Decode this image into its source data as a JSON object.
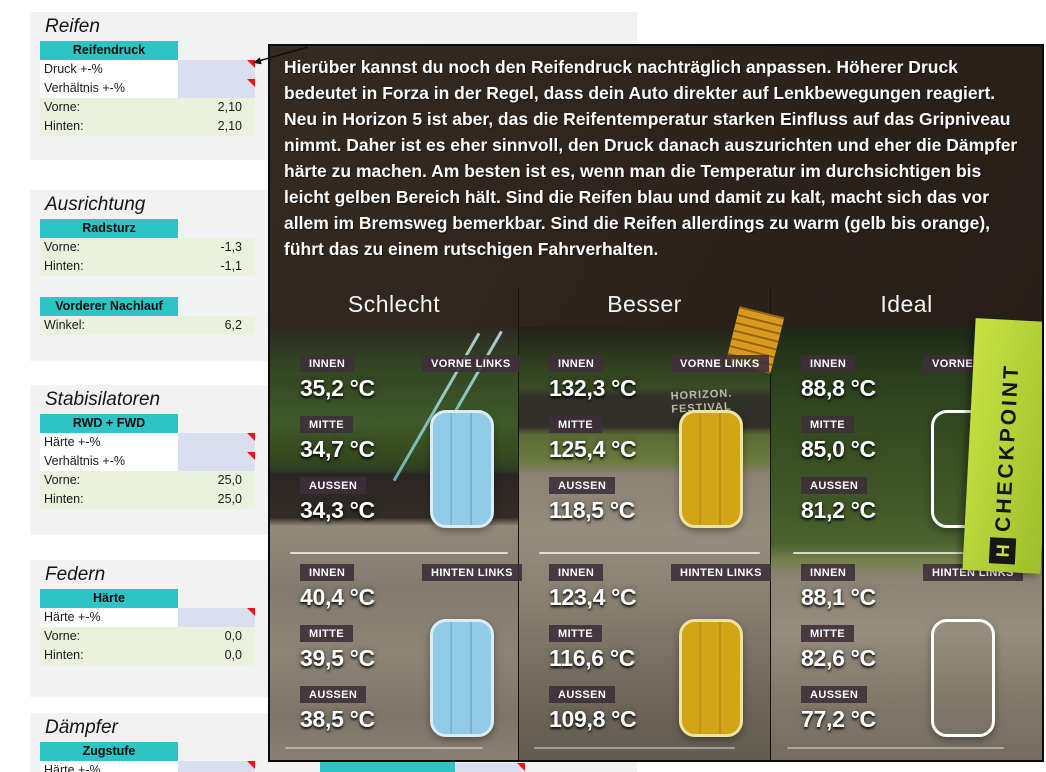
{
  "spreadsheet": {
    "panels": [
      {
        "title": "Reifen",
        "groups": [
          {
            "header": "Reifendruck",
            "rows": [
              {
                "type": "input",
                "label": "Druck +-%"
              },
              {
                "type": "input",
                "label": "Verhältnis +-%"
              },
              {
                "type": "value",
                "label": "Vorne:",
                "value": "2,10"
              },
              {
                "type": "value",
                "label": "Hinten:",
                "value": "2,10"
              }
            ]
          }
        ]
      },
      {
        "title": "Ausrichtung",
        "groups": [
          {
            "header": "Radsturz",
            "rows": [
              {
                "type": "value",
                "label": "Vorne:",
                "value": "-1,3"
              },
              {
                "type": "value",
                "label": "Hinten:",
                "value": "-1,1"
              }
            ]
          },
          {
            "header": "Vorderer Nachlauf",
            "rows": [
              {
                "type": "value",
                "label": "Winkel:",
                "value": "6,2"
              }
            ]
          }
        ]
      },
      {
        "title": "Stabisilatoren",
        "groups": [
          {
            "header": "RWD + FWD",
            "rows": [
              {
                "type": "input",
                "label": "Härte +-%"
              },
              {
                "type": "input",
                "label": "Verhältnis +-%"
              },
              {
                "type": "value",
                "label": "Vorne:",
                "value": "25,0"
              },
              {
                "type": "value",
                "label": "Hinten:",
                "value": "25,0"
              }
            ]
          }
        ]
      },
      {
        "title": "Federn",
        "groups": [
          {
            "header": "Härte",
            "rows": [
              {
                "type": "input",
                "label": "Härte +-%"
              },
              {
                "type": "value",
                "label": "Vorne:",
                "value": "0,0"
              },
              {
                "type": "value",
                "label": "Hinten:",
                "value": "0,0"
              }
            ]
          }
        ]
      },
      {
        "title": "Dämpfer",
        "groups": [
          {
            "header": "Zugstufe",
            "rows": [
              {
                "type": "input",
                "label": "Härte +-%"
              }
            ]
          }
        ]
      }
    ]
  },
  "annotation": {
    "paragraph": "Hierüber kannst du noch den Reifendruck nachträglich anpassen. Höherer Druck bedeutet in Forza in der Regel, dass dein Auto direkter auf Lenkbewegungen reagiert. Neu in Horizon 5 ist aber, das die Reifentemperatur starken Einfluss auf das Gripniveau nimmt. Daher ist es eher sinnvoll, den Druck danach auszurichten und eher die Dämpfer härte zu machen. Am besten ist es, wenn man die Temperatur im durchsichtigen bis leicht gelben Bereich hält. Sind die Reifen blau und damit zu kalt, macht sich das vor allem im Bremsweg bemerkbar. Sind die Reifen allerdings zu warm (gelb bis orange), führt das zu einem rutschigen Fahrverhalten."
  },
  "comparison": {
    "columns": [
      {
        "title": "Schlecht",
        "tire": {
          "fill": "#92CBE8",
          "border": "#D9EDF8"
        },
        "front": {
          "position": "VORNE LINKS",
          "readings": [
            {
              "label": "INNEN",
              "value": "35,2 °C"
            },
            {
              "label": "MITTE",
              "value": "34,7 °C"
            },
            {
              "label": "AUSSEN",
              "value": "34,3 °C"
            }
          ]
        },
        "rear": {
          "position": "HINTEN LINKS",
          "readings": [
            {
              "label": "INNEN",
              "value": "40,4 °C"
            },
            {
              "label": "MITTE",
              "value": "39,5 °C"
            },
            {
              "label": "AUSSEN",
              "value": "38,5 °C"
            }
          ]
        }
      },
      {
        "title": "Besser",
        "tire": {
          "fill": "#D2A517",
          "border": "#EFE3A0"
        },
        "front": {
          "position": "VORNE LINKS",
          "readings": [
            {
              "label": "INNEN",
              "value": "132,3 °C"
            },
            {
              "label": "MITTE",
              "value": "125,4 °C"
            },
            {
              "label": "AUSSEN",
              "value": "118,5 °C"
            }
          ]
        },
        "rear": {
          "position": "HINTEN LINKS",
          "readings": [
            {
              "label": "INNEN",
              "value": "123,4 °C"
            },
            {
              "label": "MITTE",
              "value": "116,6 °C"
            },
            {
              "label": "AUSSEN",
              "value": "109,8 °C"
            }
          ]
        }
      },
      {
        "title": "Ideal",
        "tire": {
          "fill": "transparent",
          "border": "#FFFFFF"
        },
        "front": {
          "position": "VORNE LINKS",
          "readings": [
            {
              "label": "INNEN",
              "value": "88,8 °C"
            },
            {
              "label": "MITTE",
              "value": "85,0 °C"
            },
            {
              "label": "AUSSEN",
              "value": "81,2 °C"
            }
          ]
        },
        "rear": {
          "position": "HINTEN LINKS",
          "readings": [
            {
              "label": "INNEN",
              "value": "88,1 °C"
            },
            {
              "label": "MITTE",
              "value": "82,6 °C"
            },
            {
              "label": "AUSSEN",
              "value": "77,2 °C"
            }
          ]
        }
      }
    ],
    "banner_text": "CHECKPOINT",
    "banner_logo": "H",
    "sign_lines": [
      "HORIZON.",
      "FESTIVAL"
    ]
  },
  "colors": {
    "header_teal": "#2EC4C6",
    "input_lavender": "#D9DEF1",
    "value_green": "#EAF1DD",
    "comment_red": "#FB0D0D",
    "banner_green": "#BCD838",
    "tire_cold": "#92CBE8",
    "tire_hot": "#D2A517"
  }
}
